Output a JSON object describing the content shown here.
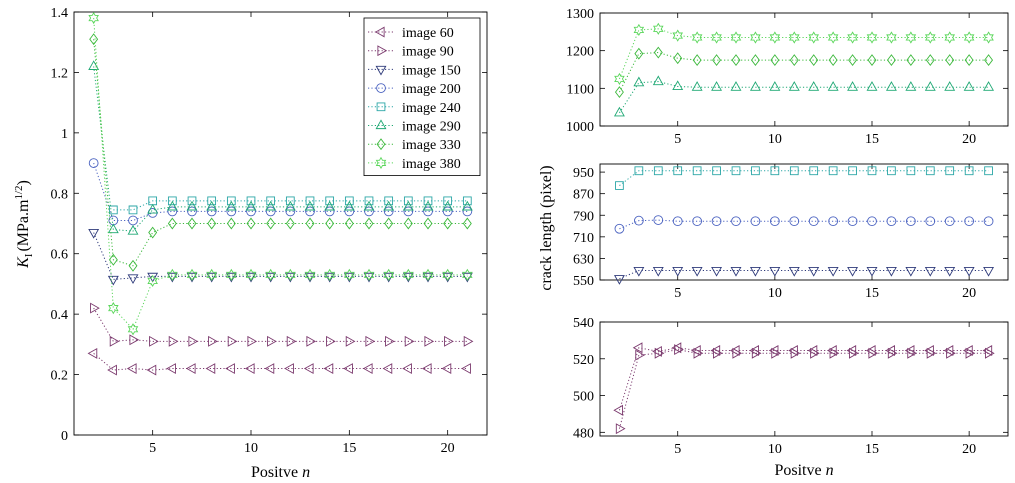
{
  "chart_data": [
    {
      "id": "left",
      "type": "line",
      "xlabel": "Positve n",
      "ylabel_main": "K",
      "ylabel_sub": "I",
      "ylabel_units": "(MPa.m",
      "ylabel_exp": "1/2",
      "ylabel_close": ")",
      "xlim": [
        1,
        22
      ],
      "ylim": [
        0,
        1.4
      ],
      "xticks": [
        5,
        10,
        15,
        20
      ],
      "yticks": [
        0,
        0.2,
        0.4,
        0.6,
        0.8,
        1,
        1.2,
        1.4
      ],
      "grid": false,
      "legend_position": "top-right",
      "series": [
        {
          "name": "image 60",
          "marker": "triangle-left",
          "color": "#7b3a6e",
          "x": [
            2,
            3,
            4,
            5,
            6,
            7,
            8,
            9,
            10,
            11,
            12,
            13,
            14,
            15,
            16,
            17,
            18,
            19,
            20,
            21
          ],
          "y": [
            0.27,
            0.215,
            0.22,
            0.215,
            0.22,
            0.22,
            0.22,
            0.22,
            0.22,
            0.22,
            0.22,
            0.22,
            0.22,
            0.22,
            0.22,
            0.22,
            0.22,
            0.22,
            0.22,
            0.22
          ]
        },
        {
          "name": "image 90",
          "marker": "triangle-right",
          "color": "#7b3a6e",
          "x": [
            2,
            3,
            4,
            5,
            6,
            7,
            8,
            9,
            10,
            11,
            12,
            13,
            14,
            15,
            16,
            17,
            18,
            19,
            20,
            21
          ],
          "y": [
            0.42,
            0.31,
            0.315,
            0.31,
            0.31,
            0.31,
            0.31,
            0.31,
            0.31,
            0.31,
            0.31,
            0.31,
            0.31,
            0.31,
            0.31,
            0.31,
            0.31,
            0.31,
            0.31,
            0.31
          ]
        },
        {
          "name": "image 150",
          "marker": "triangle-down",
          "color": "#2e3a7a",
          "x": [
            2,
            3,
            4,
            5,
            6,
            7,
            8,
            9,
            10,
            11,
            12,
            13,
            14,
            15,
            16,
            17,
            18,
            19,
            20,
            21
          ],
          "y": [
            0.67,
            0.515,
            0.52,
            0.525,
            0.525,
            0.525,
            0.525,
            0.525,
            0.525,
            0.525,
            0.525,
            0.525,
            0.525,
            0.525,
            0.525,
            0.525,
            0.525,
            0.525,
            0.525,
            0.525
          ]
        },
        {
          "name": "image 200",
          "marker": "circle",
          "color": "#4a62c0",
          "x": [
            2,
            3,
            4,
            5,
            6,
            7,
            8,
            9,
            10,
            11,
            12,
            13,
            14,
            15,
            16,
            17,
            18,
            19,
            20,
            21
          ],
          "y": [
            0.9,
            0.71,
            0.71,
            0.735,
            0.74,
            0.74,
            0.74,
            0.74,
            0.74,
            0.74,
            0.74,
            0.74,
            0.74,
            0.74,
            0.74,
            0.74,
            0.74,
            0.74,
            0.74,
            0.74
          ]
        },
        {
          "name": "image 240",
          "marker": "square",
          "color": "#2aa6a6",
          "x": [
            3,
            4,
            5,
            6,
            7,
            8,
            9,
            10,
            11,
            12,
            13,
            14,
            15,
            16,
            17,
            18,
            19,
            20,
            21
          ],
          "y": [
            0.745,
            0.745,
            0.775,
            0.775,
            0.775,
            0.775,
            0.775,
            0.775,
            0.775,
            0.775,
            0.775,
            0.775,
            0.775,
            0.775,
            0.775,
            0.775,
            0.775,
            0.775,
            0.775
          ]
        },
        {
          "name": "image 290",
          "marker": "triangle-up",
          "color": "#1fa874",
          "x": [
            2,
            3,
            4,
            5,
            6,
            7,
            8,
            9,
            10,
            11,
            12,
            13,
            14,
            15,
            16,
            17,
            18,
            19,
            20,
            21
          ],
          "y": [
            1.22,
            0.68,
            0.675,
            0.745,
            0.755,
            0.755,
            0.755,
            0.755,
            0.755,
            0.755,
            0.755,
            0.755,
            0.755,
            0.755,
            0.755,
            0.755,
            0.755,
            0.755,
            0.755,
            0.755
          ]
        },
        {
          "name": "image 330",
          "marker": "diamond",
          "color": "#3cb83c",
          "x": [
            2,
            3,
            4,
            5,
            6,
            7,
            8,
            9,
            10,
            11,
            12,
            13,
            14,
            15,
            16,
            17,
            18,
            19,
            20,
            21
          ],
          "y": [
            1.31,
            0.58,
            0.56,
            0.67,
            0.7,
            0.7,
            0.7,
            0.7,
            0.7,
            0.7,
            0.7,
            0.7,
            0.7,
            0.7,
            0.7,
            0.7,
            0.7,
            0.7,
            0.7,
            0.7
          ]
        },
        {
          "name": "image 380",
          "marker": "hexagram",
          "color": "#5ad65a",
          "x": [
            2,
            3,
            4,
            5,
            6,
            7,
            8,
            9,
            10,
            11,
            12,
            13,
            14,
            15,
            16,
            17,
            18,
            19,
            20,
            21
          ],
          "y": [
            1.38,
            0.42,
            0.35,
            0.51,
            0.53,
            0.53,
            0.53,
            0.53,
            0.53,
            0.53,
            0.53,
            0.53,
            0.53,
            0.53,
            0.53,
            0.53,
            0.53,
            0.53,
            0.53,
            0.53
          ]
        }
      ]
    },
    {
      "id": "right-top",
      "type": "line",
      "xlim": [
        1,
        22
      ],
      "ylim": [
        1000,
        1300
      ],
      "xticks": [
        5,
        10,
        15,
        20
      ],
      "yticks": [
        1000,
        1100,
        1200,
        1300
      ],
      "grid": false,
      "series": [
        {
          "marker": "triangle-up",
          "color": "#1fa874",
          "x": [
            2,
            3,
            4,
            5,
            6,
            7,
            8,
            9,
            10,
            11,
            12,
            13,
            14,
            15,
            16,
            17,
            18,
            19,
            20,
            21
          ],
          "y": [
            1035,
            1115,
            1118,
            1105,
            1103,
            1103,
            1103,
            1103,
            1103,
            1103,
            1103,
            1103,
            1103,
            1103,
            1103,
            1103,
            1103,
            1103,
            1103,
            1103
          ]
        },
        {
          "marker": "diamond",
          "color": "#3cb83c",
          "x": [
            2,
            3,
            4,
            5,
            6,
            7,
            8,
            9,
            10,
            11,
            12,
            13,
            14,
            15,
            16,
            17,
            18,
            19,
            20,
            21
          ],
          "y": [
            1090,
            1192,
            1195,
            1180,
            1175,
            1175,
            1175,
            1175,
            1175,
            1175,
            1175,
            1175,
            1175,
            1175,
            1175,
            1175,
            1175,
            1175,
            1175,
            1175
          ]
        },
        {
          "marker": "hexagram",
          "color": "#5ad65a",
          "x": [
            2,
            3,
            4,
            5,
            6,
            7,
            8,
            9,
            10,
            11,
            12,
            13,
            14,
            15,
            16,
            17,
            18,
            19,
            20,
            21
          ],
          "y": [
            1125,
            1255,
            1258,
            1240,
            1235,
            1235,
            1235,
            1235,
            1235,
            1235,
            1235,
            1235,
            1235,
            1235,
            1235,
            1235,
            1235,
            1235,
            1235,
            1235
          ]
        }
      ]
    },
    {
      "id": "right-middle",
      "type": "line",
      "ylabel": "crack length (pixel)",
      "xlim": [
        1,
        22
      ],
      "ylim": [
        550,
        980
      ],
      "xticks": [
        5,
        10,
        15,
        20
      ],
      "yticks": [
        550,
        630,
        710,
        790,
        870,
        950
      ],
      "grid": false,
      "series": [
        {
          "marker": "triangle-down",
          "color": "#2e3a7a",
          "x": [
            2,
            3,
            4,
            5,
            6,
            7,
            8,
            9,
            10,
            11,
            12,
            13,
            14,
            15,
            16,
            17,
            18,
            19,
            20,
            21
          ],
          "y": [
            555,
            585,
            585,
            585,
            585,
            585,
            585,
            585,
            585,
            585,
            585,
            585,
            585,
            585,
            585,
            585,
            585,
            585,
            585,
            585
          ]
        },
        {
          "marker": "circle",
          "color": "#4a62c0",
          "x": [
            2,
            3,
            4,
            5,
            6,
            7,
            8,
            9,
            10,
            11,
            12,
            13,
            14,
            15,
            16,
            17,
            18,
            19,
            20,
            21
          ],
          "y": [
            740,
            770,
            772,
            768,
            768,
            768,
            768,
            768,
            768,
            768,
            768,
            768,
            768,
            768,
            768,
            768,
            768,
            768,
            768,
            768
          ]
        },
        {
          "marker": "square",
          "color": "#2aa6a6",
          "x": [
            2,
            3,
            4,
            5,
            6,
            7,
            8,
            9,
            10,
            11,
            12,
            13,
            14,
            15,
            16,
            17,
            18,
            19,
            20,
            21
          ],
          "y": [
            900,
            955,
            955,
            955,
            955,
            955,
            955,
            955,
            955,
            955,
            955,
            955,
            955,
            955,
            955,
            955,
            955,
            955,
            955,
            955
          ]
        }
      ]
    },
    {
      "id": "right-bottom",
      "type": "line",
      "xlabel": "Positve n",
      "xlim": [
        1,
        22
      ],
      "ylim": [
        478,
        540
      ],
      "xticks": [
        5,
        10,
        15,
        20
      ],
      "yticks": [
        480,
        500,
        520,
        540
      ],
      "grid": false,
      "series": [
        {
          "marker": "triangle-left",
          "color": "#7b3a6e",
          "x": [
            2,
            3,
            4,
            5,
            6,
            7,
            8,
            9,
            10,
            11,
            12,
            13,
            14,
            15,
            16,
            17,
            18,
            19,
            20,
            21
          ],
          "y": [
            492,
            526,
            524,
            526,
            524.5,
            524.5,
            524.5,
            524.5,
            524.5,
            524.5,
            524.5,
            524.5,
            524.5,
            524.5,
            524.5,
            524.5,
            524.5,
            524.5,
            524.5,
            524.5
          ]
        },
        {
          "marker": "triangle-right",
          "color": "#7b3a6e",
          "x": [
            2,
            3,
            4,
            5,
            6,
            7,
            8,
            9,
            10,
            11,
            12,
            13,
            14,
            15,
            16,
            17,
            18,
            19,
            20,
            21
          ],
          "y": [
            482,
            522,
            523,
            525,
            523,
            523,
            523,
            523,
            523,
            523,
            523,
            523,
            523,
            523,
            523,
            523,
            523,
            523,
            523,
            523
          ]
        }
      ]
    }
  ]
}
